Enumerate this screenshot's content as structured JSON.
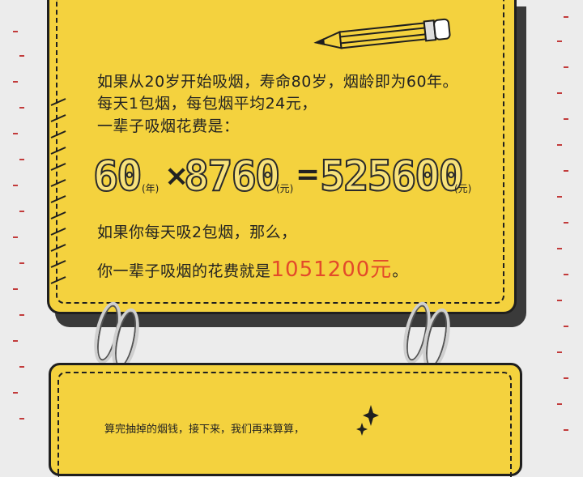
{
  "text": {
    "line1": "如果从20岁开始吸烟，寿命80岁，烟龄即为60年。",
    "line2": "每天1包烟，每包烟平均24元，",
    "line3": "一辈子吸烟花费是：",
    "line4": "如果你每天吸2包烟，那么，",
    "line5_prefix": "你一辈子吸烟的花费就是",
    "line5_highlight": "1051200元",
    "line5_suffix": "。"
  },
  "equation": {
    "a": "60",
    "a_unit": "(年)",
    "op1": "×",
    "b": "8760",
    "b_unit": "(元)",
    "op2": "=",
    "c": "525600",
    "c_unit": "(元)"
  },
  "card2": {
    "text": "算完抽掉的烟钱，接下来，我们再来算算，"
  },
  "colors": {
    "card": "#f4d23e",
    "highlight": "#e34a2a",
    "background": "#ececec"
  }
}
